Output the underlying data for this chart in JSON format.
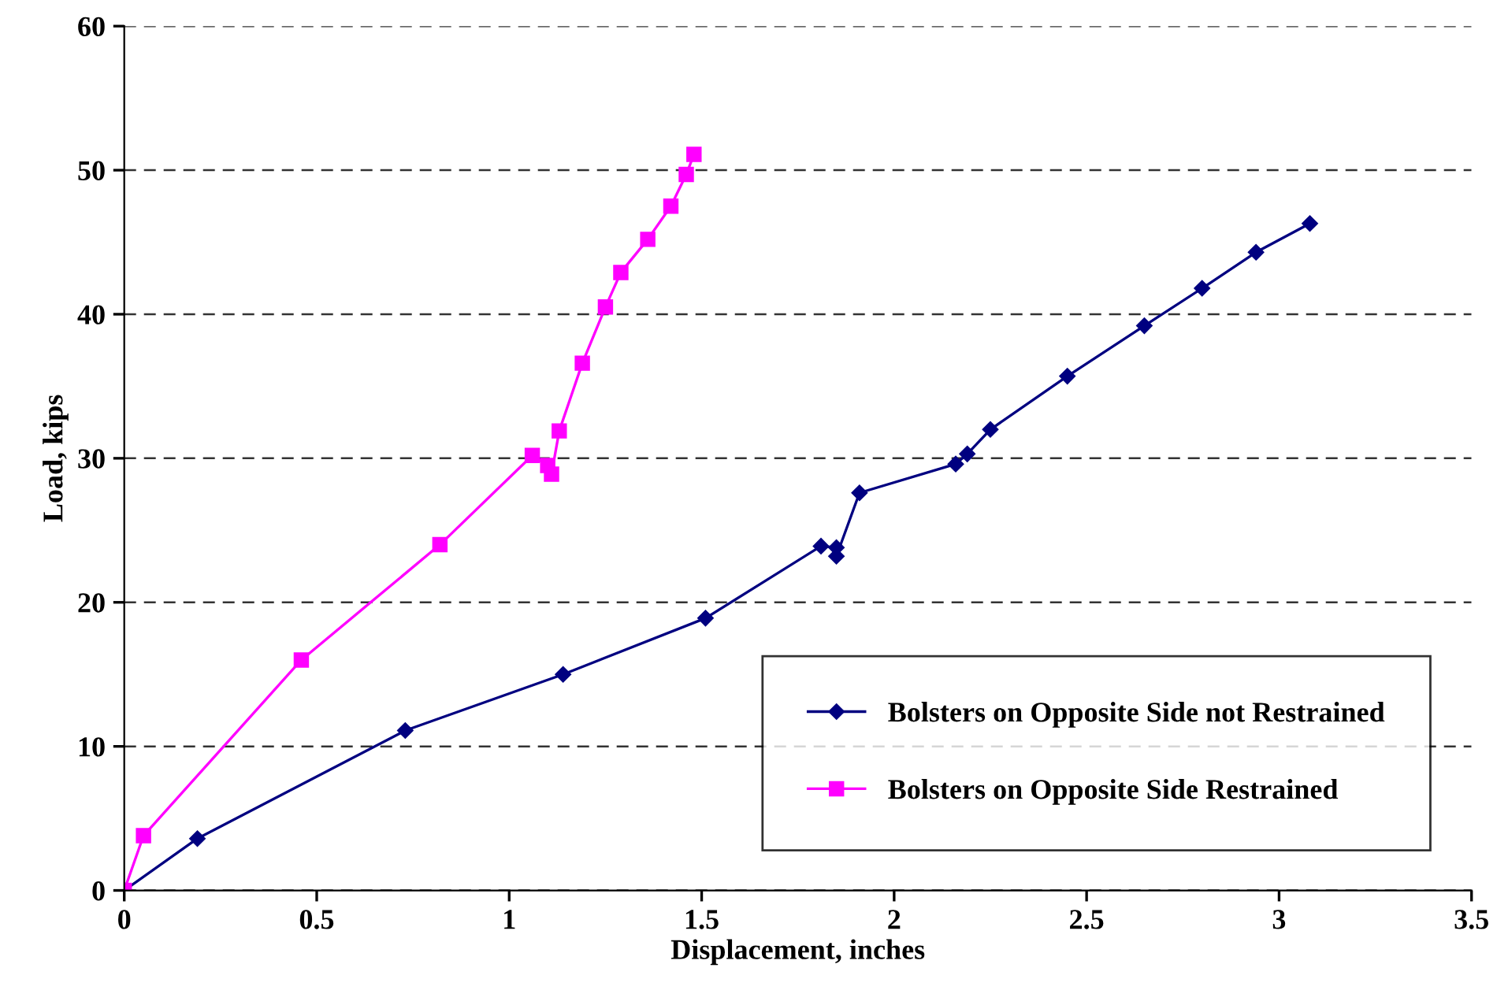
{
  "chart_data": {
    "type": "line",
    "xlabel": "Displacement, inches",
    "ylabel": "Load, kips",
    "xlim": [
      0,
      3.5
    ],
    "xticks": [
      0,
      0.5,
      1,
      1.5,
      2,
      2.5,
      3,
      3.5
    ],
    "ylim": [
      0,
      60
    ],
    "yticks": [
      0,
      10,
      20,
      30,
      40,
      50,
      60
    ],
    "grid": "y",
    "legend": "bottom right",
    "series": [
      {
        "name": "Bolsters on Opposite Side not Restrained",
        "color": "#000080",
        "marker": "diamond",
        "x": [
          0,
          0.19,
          0.73,
          1.14,
          1.51,
          1.81,
          1.85,
          1.85,
          1.91,
          2.16,
          2.19,
          2.25,
          2.45,
          2.65,
          2.8,
          2.94,
          3.08
        ],
        "values": [
          0,
          3.6,
          11.1,
          15.0,
          18.9,
          23.9,
          23.8,
          23.2,
          27.6,
          29.6,
          30.3,
          32.0,
          35.7,
          39.2,
          41.8,
          44.3,
          46.3
        ]
      },
      {
        "name": "Bolsters on Opposite Side Restrained",
        "color": "#ff00ff",
        "marker": "square",
        "x": [
          0,
          0.05,
          0.46,
          0.82,
          1.06,
          1.1,
          1.11,
          1.13,
          1.19,
          1.25,
          1.29,
          1.36,
          1.42,
          1.46,
          1.48
        ],
        "values": [
          0,
          3.8,
          16.0,
          24.0,
          30.2,
          29.5,
          28.9,
          31.9,
          36.6,
          40.5,
          42.9,
          45.2,
          47.5,
          49.7,
          51.1
        ]
      }
    ]
  }
}
